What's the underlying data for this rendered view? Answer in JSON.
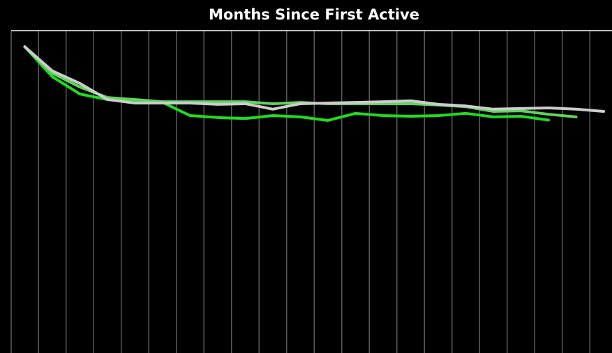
{
  "chart_data": {
    "type": "line",
    "title": "Months Since First Active",
    "categories": [
      null,
      null,
      null,
      null,
      null,
      null,
      null,
      null,
      null,
      null,
      null,
      null,
      null,
      null,
      null,
      null,
      null,
      null,
      null,
      null,
      null,
      null
    ],
    "ylim": [
      0,
      100
    ],
    "grid": true,
    "series": [
      {
        "color": "#1fdc1f",
        "values": [
          95.2,
          85.9,
          80.5,
          78.8,
          78.6,
          77.9,
          73.8,
          73.2,
          72.9,
          73.8,
          73.4,
          72.3,
          74.5,
          73.8,
          73.6,
          73.8,
          74.5,
          73.4,
          73.6,
          72.4,
          null,
          null
        ]
      },
      {
        "color": "#5fd45f",
        "values": [
          95.2,
          87.0,
          82.7,
          79.4,
          78.8,
          78.1,
          78.1,
          78.1,
          78.1,
          77.5,
          77.9,
          77.5,
          77.5,
          77.5,
          77.5,
          77.1,
          76.6,
          75.1,
          75.3,
          74.2,
          73.4,
          null
        ]
      },
      {
        "color": "#cccccc",
        "values": [
          95.2,
          87.7,
          83.8,
          78.8,
          77.7,
          77.7,
          77.7,
          77.3,
          77.5,
          75.8,
          77.5,
          77.7,
          77.9,
          78.1,
          78.4,
          77.3,
          76.8,
          75.8,
          76.0,
          76.2,
          75.8,
          75.1
        ]
      }
    ]
  }
}
